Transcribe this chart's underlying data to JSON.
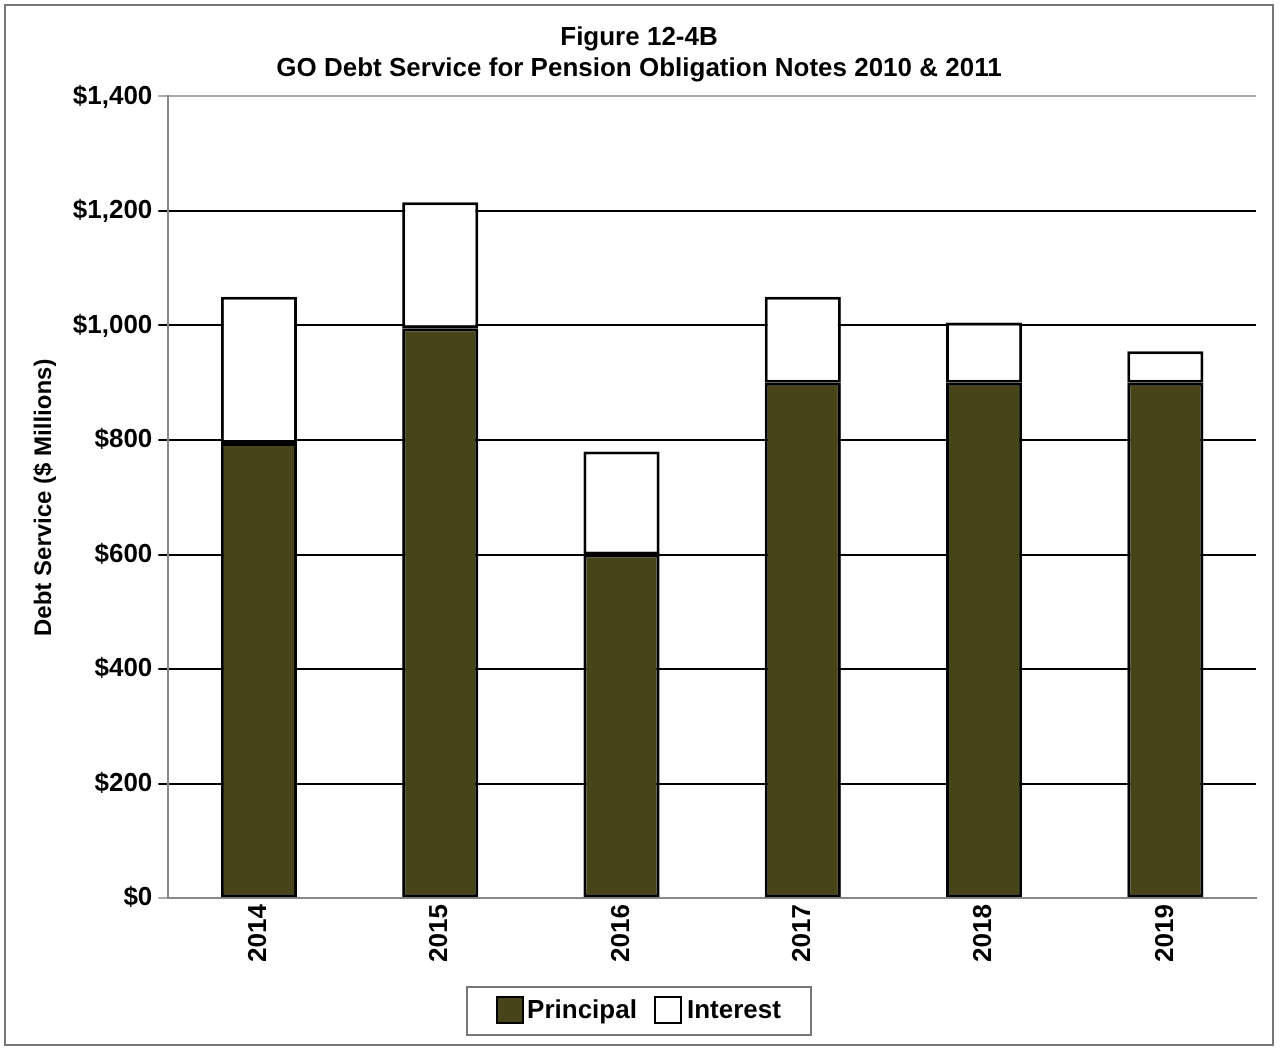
{
  "chart_data": {
    "type": "bar",
    "title": [
      "Figure 12-4B",
      "GO Debt Service for Pension Obligation Notes 2010 & 2011"
    ],
    "ylabel": "Debt Service ($ Millions)",
    "categories": [
      "2014",
      "2015",
      "2016",
      "2017",
      "2018",
      "2019"
    ],
    "stacked": true,
    "series": [
      {
        "name": "Principal",
        "color": "#474419",
        "values": [
          795,
          995,
          600,
          900,
          900,
          900
        ]
      },
      {
        "name": "Interest",
        "color": "#ffffff",
        "values": [
          255,
          220,
          180,
          150,
          105,
          55
        ]
      }
    ],
    "ylim": [
      0,
      1400
    ],
    "yticks": [
      {
        "value": 0,
        "label": "$0"
      },
      {
        "value": 200,
        "label": "$200"
      },
      {
        "value": 400,
        "label": "$400"
      },
      {
        "value": 600,
        "label": "$600"
      },
      {
        "value": 800,
        "label": "$800"
      },
      {
        "value": 1000,
        "label": "$1,000"
      },
      {
        "value": 1200,
        "label": "$1,200"
      },
      {
        "value": 1400,
        "label": "$1,400"
      }
    ],
    "grid": "y",
    "legend": "bottom"
  }
}
